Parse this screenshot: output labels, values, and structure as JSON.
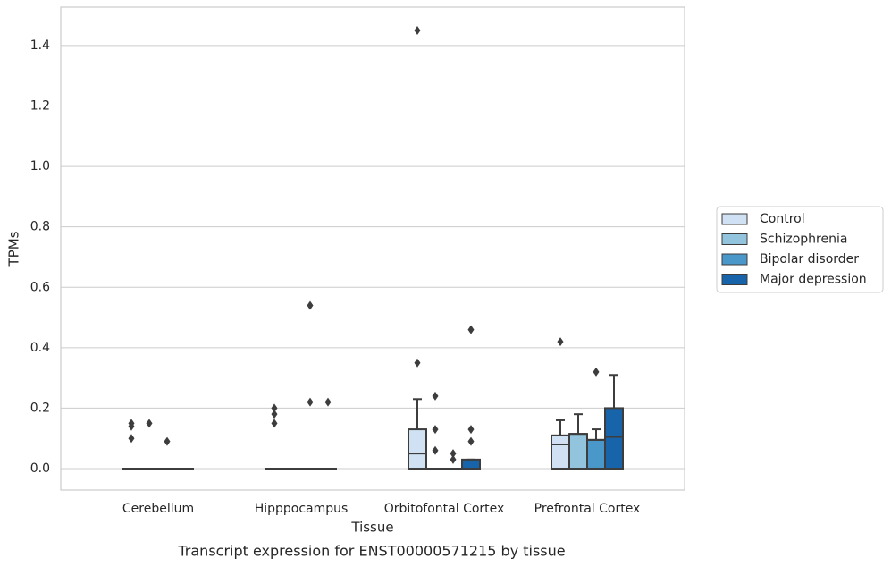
{
  "chart_data": {
    "type": "box",
    "title": "Transcript expression for ENST00000571215 by tissue",
    "xlabel": "Tissue",
    "ylabel": "TPMs",
    "categories": [
      "Cerebellum",
      "Hipppocampus",
      "Orbitofontal Cortex",
      "Prefrontal Cortex"
    ],
    "ylim": [
      -0.071,
      1.527
    ],
    "yticks": [
      {
        "value": 0,
        "label": "0.0"
      },
      0.2,
      0.4,
      0.6,
      0.8,
      {
        "value": 1,
        "label": "1.0"
      },
      1.2,
      1.4
    ],
    "grid": true,
    "legend": "right",
    "series": [
      {
        "name": "Control",
        "color": "#cfe1f2",
        "boxes": [
          {
            "q1": 0,
            "median": 0,
            "q3": 0,
            "whislo": 0,
            "whishi": 0,
            "outliers": [
              0.15,
              0.14,
              0.1
            ]
          },
          {
            "q1": 0,
            "median": 0,
            "q3": 0,
            "whislo": 0,
            "whishi": 0,
            "outliers": [
              0.2,
              0.18,
              0.15
            ]
          },
          {
            "q1": 0,
            "median": 0.05,
            "q3": 0.13,
            "whislo": 0,
            "whishi": 0.23,
            "outliers": [
              0.35,
              1.45
            ]
          },
          {
            "q1": 0,
            "median": 0.08,
            "q3": 0.11,
            "whislo": 0,
            "whishi": 0.16,
            "outliers": [
              0.42
            ]
          }
        ]
      },
      {
        "name": "Schizophrenia",
        "color": "#93c4de",
        "boxes": [
          {
            "q1": 0,
            "median": 0,
            "q3": 0,
            "whislo": 0,
            "whishi": 0,
            "outliers": [
              0.15
            ]
          },
          {
            "q1": 0,
            "median": 0,
            "q3": 0,
            "whislo": 0,
            "whishi": 0,
            "outliers": []
          },
          {
            "q1": 0,
            "median": 0,
            "q3": 0,
            "whislo": 0,
            "whishi": 0,
            "outliers": [
              0.24,
              0.13,
              0.06
            ]
          },
          {
            "q1": 0,
            "median": 0.115,
            "q3": 0.115,
            "whislo": 0,
            "whishi": 0.18,
            "outliers": []
          }
        ]
      },
      {
        "name": "Bipolar disorder",
        "color": "#4a98c9",
        "boxes": [
          {
            "q1": 0,
            "median": 0,
            "q3": 0,
            "whislo": 0,
            "whishi": 0,
            "outliers": [
              0.09
            ]
          },
          {
            "q1": 0,
            "median": 0,
            "q3": 0,
            "whislo": 0,
            "whishi": 0,
            "outliers": [
              0.54,
              0.22
            ]
          },
          {
            "q1": 0,
            "median": 0,
            "q3": 0,
            "whislo": 0,
            "whishi": 0,
            "outliers": [
              0.05,
              0.03
            ]
          },
          {
            "q1": 0,
            "median": 0.095,
            "q3": 0.095,
            "whislo": 0,
            "whishi": 0.13,
            "outliers": [
              0.32
            ]
          }
        ]
      },
      {
        "name": "Major depression",
        "color": "#1764ab",
        "boxes": [
          {
            "q1": 0,
            "median": 0,
            "q3": 0,
            "whislo": 0,
            "whishi": 0,
            "outliers": []
          },
          {
            "q1": 0,
            "median": 0,
            "q3": 0,
            "whislo": 0,
            "whishi": 0,
            "outliers": [
              0.22
            ]
          },
          {
            "q1": 0,
            "median": 0,
            "q3": 0.03,
            "whislo": 0,
            "whishi": 0.03,
            "outliers": [
              0.46,
              0.13,
              0.09
            ]
          },
          {
            "q1": 0,
            "median": 0.105,
            "q3": 0.2,
            "whislo": 0,
            "whishi": 0.31,
            "outliers": []
          }
        ]
      }
    ]
  }
}
